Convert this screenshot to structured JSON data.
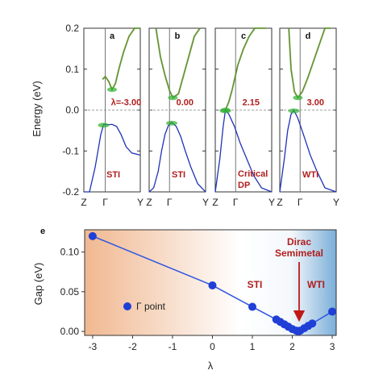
{
  "chart_data": [
    {
      "type": "line",
      "ylabel": "Energy (eV)",
      "ylim": [
        -0.2,
        0.2
      ],
      "y_ticks": [
        "0.2",
        "0.1",
        "0.0",
        "-0.1",
        "-0.2"
      ],
      "x_ticks": [
        "Z",
        "Γ",
        "Y"
      ],
      "panels": [
        {
          "letter": "a",
          "lambda_label": "λ=-3.00",
          "phase_label": "STI",
          "conduction": {
            "x": [
              0.33,
              0.38,
              0.44,
              0.5,
              0.56,
              0.62,
              0.7,
              0.8,
              0.9,
              1.0
            ],
            "y": [
              0.075,
              0.082,
              0.07,
              0.05,
              0.065,
              0.1,
              0.14,
              0.18,
              0.2,
              0.2
            ]
          },
          "valence": {
            "x": [
              0.0,
              0.1,
              0.2,
              0.3,
              0.35,
              0.42,
              0.5,
              0.58,
              0.66,
              0.75,
              0.85,
              1.0
            ],
            "y": [
              -0.2,
              -0.2,
              -0.14,
              -0.06,
              -0.035,
              -0.036,
              -0.035,
              -0.04,
              -0.06,
              -0.09,
              -0.105,
              -0.11
            ]
          }
        },
        {
          "letter": "b",
          "lambda_label": "0.00",
          "phase_label": "STI",
          "conduction": {
            "x": [
              0.12,
              0.2,
              0.28,
              0.36,
              0.42,
              0.52,
              0.6,
              0.7,
              0.8,
              0.9
            ],
            "y": [
              0.2,
              0.13,
              0.085,
              0.048,
              0.03,
              0.04,
              0.08,
              0.13,
              0.18,
              0.2
            ]
          },
          "valence": {
            "x": [
              0.0,
              0.08,
              0.16,
              0.22,
              0.28,
              0.34,
              0.4,
              0.48,
              0.56,
              0.64,
              0.74,
              0.86,
              1.0
            ],
            "y": [
              -0.2,
              -0.19,
              -0.15,
              -0.1,
              -0.06,
              -0.038,
              -0.03,
              -0.04,
              -0.065,
              -0.1,
              -0.14,
              -0.18,
              -0.2
            ]
          }
        },
        {
          "letter": "c",
          "lambda_label": "2.15",
          "phase_label": "Critical DP",
          "conduction": {
            "x": [
              0.18,
              0.24,
              0.3,
              0.35,
              0.4,
              0.5,
              0.6,
              0.7,
              0.8,
              0.9
            ],
            "y": [
              0.0,
              0.02,
              0.05,
              0.08,
              0.11,
              0.15,
              0.18,
              0.2,
              0.2,
              0.2
            ]
          },
          "valence": {
            "x": [
              0.0,
              0.08,
              0.14,
              0.18,
              0.24,
              0.34,
              0.44,
              0.56,
              0.68,
              0.82,
              1.0
            ],
            "y": [
              -0.2,
              -0.12,
              -0.04,
              0.0,
              -0.01,
              -0.04,
              -0.08,
              -0.12,
              -0.16,
              -0.19,
              -0.2
            ]
          }
        },
        {
          "letter": "d",
          "lambda_label": "3.00",
          "phase_label": "WTI",
          "conduction": {
            "x": [
              0.16,
              0.2,
              0.26,
              0.32,
              0.4,
              0.5,
              0.6,
              0.7,
              0.8,
              0.9
            ],
            "y": [
              0.2,
              0.1,
              0.045,
              0.03,
              0.045,
              0.08,
              0.12,
              0.16,
              0.2,
              0.2
            ]
          },
          "valence": {
            "x": [
              0.0,
              0.08,
              0.14,
              0.2,
              0.25,
              0.32,
              0.42,
              0.54,
              0.66,
              0.8,
              1.0
            ],
            "y": [
              -0.2,
              -0.12,
              -0.05,
              -0.01,
              0.0,
              -0.02,
              -0.06,
              -0.11,
              -0.15,
              -0.19,
              -0.2
            ]
          }
        }
      ]
    },
    {
      "type": "scatter",
      "panel_letter": "e",
      "xlabel": "λ",
      "ylabel": "Gap (eV)",
      "xlim": [
        -3.2,
        3.1
      ],
      "ylim": [
        -0.005,
        0.128
      ],
      "x_ticks": [
        "-3",
        "-2",
        "-1",
        "0",
        "1",
        "2",
        "3"
      ],
      "y_ticks": [
        "0.00",
        "0.05",
        "0.10"
      ],
      "legend": "Γ point",
      "region_labels": {
        "sti": "STI",
        "wti": "WTI",
        "dirac_line1": "Dirac",
        "dirac_line2": "Semimetal"
      },
      "series": [
        {
          "name": "Γ point",
          "x": [
            -3.0,
            0.0,
            1.0,
            1.6,
            1.7,
            1.8,
            1.9,
            2.0,
            2.1,
            2.15,
            2.2,
            2.3,
            2.4,
            2.5,
            3.0
          ],
          "y": [
            0.12,
            0.058,
            0.031,
            0.015,
            0.012,
            0.009,
            0.006,
            0.003,
            0.001,
            0.0,
            0.001,
            0.004,
            0.007,
            0.01,
            0.025
          ]
        }
      ],
      "colors": {
        "marker": "#1f3fd6",
        "line": "#2f56e0",
        "arrow": "#c01818",
        "sti_bg": "#f0b890",
        "wti_bg": "#7aaed8"
      }
    }
  ]
}
